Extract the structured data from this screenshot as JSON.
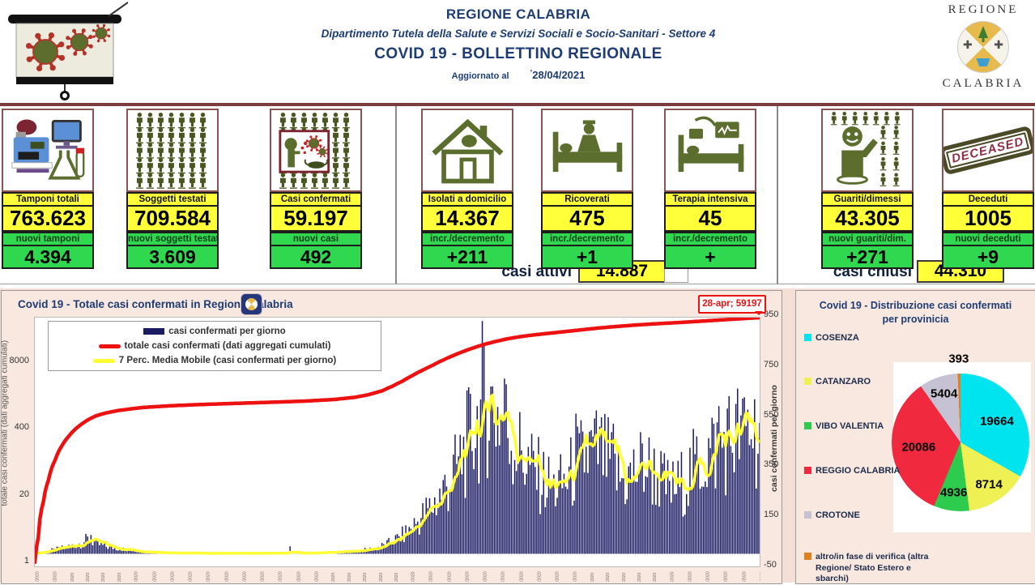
{
  "header": {
    "title1": "REGIONE CALABRIA",
    "subtitle": "Dipartimento Tutela della Salute e Servizi Sociali e Socio-Sanitari - Settore 4",
    "title2": "COVID 19 - BOLLETTINO REGIONALE",
    "updated_label": "Aggiornato al",
    "updated_tick": "’",
    "updated_date": "28/04/2021",
    "logo_top": "REGIONE",
    "logo_bottom": "CALABRIA"
  },
  "stats_cards": [
    {
      "id": "tamponi",
      "icon": "lab-equipment-icon",
      "title": "Tamponi totali",
      "value": "763.623",
      "sub_label": "nuovi tamponi",
      "sub_value": "4.394"
    },
    {
      "id": "soggetti",
      "icon": "people-grid-icon",
      "title": "Soggetti testati",
      "value": "709.584",
      "sub_label": "nuovi soggetti testati",
      "sub_value": "3.609"
    },
    {
      "id": "casi-confermati",
      "icon": "cough-virus-icon",
      "title": "Casi confermati",
      "value": "59.197",
      "sub_label": "nuovi casi",
      "sub_value": "492"
    },
    {
      "id": "isolati",
      "icon": "home-icon",
      "title": "Isolati a domicilio",
      "value": "14.367",
      "sub_label": "incr./decremento",
      "sub_value": "+211"
    },
    {
      "id": "ricoverati",
      "icon": "hospital-bed-icon",
      "title": "Ricoverati",
      "value": "475",
      "sub_label": "incr./decremento",
      "sub_value": "+1"
    },
    {
      "id": "terapia-intensiva",
      "icon": "icu-bed-icon",
      "title": "Terapia intensiva",
      "value": "45",
      "sub_label": "incr./decremento",
      "sub_value": "+"
    },
    {
      "id": "guariti",
      "icon": "recovered-person-icon",
      "title": "Guariti/dimessi",
      "value": "43.305",
      "sub_label": "nuovi guariti/dim.",
      "sub_value": "+271"
    },
    {
      "id": "deceduti",
      "icon": "deceased-stamp-icon",
      "stamp_text": "DECEASED",
      "title": "Deceduti",
      "value": "1005",
      "sub_label": "nuovi deceduti",
      "sub_value": "+9"
    }
  ],
  "summary": {
    "active_label": "casi attivi",
    "active_value": "14.887",
    "closed_label": "casi chiusi",
    "closed_value": "44.310"
  },
  "chart_data": [
    {
      "type": "bar",
      "title": "Covid 19 - Totale casi confermati in Regione Calabria",
      "legend": [
        "casi confermati per giorno",
        "totale casi confermati (dati aggregati cumulati)",
        "7 Perc. Media Mobile (casi confermati per giorno)"
      ],
      "annotation": "28-apr; 59197",
      "total_confirmed": 59197,
      "left_axis": {
        "scale": "log",
        "ticks": [
          8000,
          400,
          20,
          1
        ],
        "label": "totale casi confermati (dati aggregati cumulati)"
      },
      "right_axis": {
        "scale": "linear",
        "ticks": [
          950,
          750,
          550,
          350,
          150,
          -50
        ],
        "label": "casi confermati  per giorno"
      },
      "x_range": {
        "start": "27/2/2020",
        "end": "28/4/2021",
        "days": 427,
        "note": "daily rotated date labels, illegible at full scale"
      },
      "colors": {
        "bars": "#1b1b63",
        "cumulative": "#ee1111",
        "moving_avg": "#ffff33"
      },
      "daily_keypoints": [
        [
          0,
          2
        ],
        [
          3,
          6
        ],
        [
          8,
          12
        ],
        [
          14,
          20
        ],
        [
          20,
          28
        ],
        [
          26,
          40
        ],
        [
          31,
          55
        ],
        [
          34,
          48
        ],
        [
          38,
          35
        ],
        [
          44,
          26
        ],
        [
          50,
          20
        ],
        [
          58,
          13
        ],
        [
          64,
          9
        ],
        [
          72,
          6
        ],
        [
          80,
          4
        ],
        [
          90,
          3
        ],
        [
          100,
          2
        ],
        [
          112,
          2
        ],
        [
          124,
          2
        ],
        [
          136,
          2
        ],
        [
          148,
          2
        ],
        [
          160,
          3
        ],
        [
          172,
          5
        ],
        [
          184,
          9
        ],
        [
          192,
          14
        ],
        [
          200,
          22
        ],
        [
          206,
          35
        ],
        [
          212,
          55
        ],
        [
          217,
          75
        ],
        [
          222,
          105
        ],
        [
          227,
          140
        ],
        [
          232,
          175
        ],
        [
          237,
          215
        ],
        [
          242,
          265
        ],
        [
          247,
          320
        ],
        [
          251,
          380
        ],
        [
          255,
          440
        ],
        [
          259,
          500
        ],
        [
          263,
          560
        ],
        [
          267,
          590
        ],
        [
          271,
          560
        ],
        [
          275,
          530
        ],
        [
          279,
          470
        ],
        [
          283,
          420
        ],
        [
          287,
          380
        ],
        [
          291,
          340
        ],
        [
          295,
          310
        ],
        [
          300,
          280
        ],
        [
          305,
          255
        ],
        [
          310,
          270
        ],
        [
          314,
          300
        ],
        [
          318,
          340
        ],
        [
          322,
          370
        ],
        [
          326,
          390
        ],
        [
          330,
          400
        ],
        [
          334,
          380
        ],
        [
          338,
          350
        ],
        [
          342,
          310
        ],
        [
          346,
          280
        ],
        [
          350,
          300
        ],
        [
          354,
          330
        ],
        [
          358,
          350
        ],
        [
          362,
          330
        ],
        [
          366,
          300
        ],
        [
          370,
          270
        ],
        [
          374,
          250
        ],
        [
          378,
          260
        ],
        [
          382,
          290
        ],
        [
          386,
          320
        ],
        [
          390,
          350
        ],
        [
          394,
          380
        ],
        [
          398,
          400
        ],
        [
          402,
          420
        ],
        [
          406,
          440
        ],
        [
          410,
          455
        ],
        [
          414,
          470
        ],
        [
          418,
          485
        ],
        [
          421,
          500
        ],
        [
          424,
          480
        ],
        [
          426,
          460
        ]
      ],
      "spikes": [
        [
          33,
          75
        ],
        [
          150,
          30
        ],
        [
          263,
          930
        ],
        [
          276,
          700
        ],
        [
          318,
          560
        ],
        [
          340,
          520
        ],
        [
          402,
          590
        ],
        [
          416,
          620
        ]
      ],
      "cumulative_keypoints": [
        [
          0,
          1
        ],
        [
          2,
          3
        ],
        [
          5,
          15
        ],
        [
          8,
          40
        ],
        [
          12,
          100
        ],
        [
          16,
          190
        ],
        [
          20,
          290
        ],
        [
          24,
          400
        ],
        [
          28,
          510
        ],
        [
          32,
          620
        ],
        [
          36,
          720
        ],
        [
          42,
          820
        ],
        [
          48,
          900
        ],
        [
          56,
          980
        ],
        [
          64,
          1050
        ],
        [
          80,
          1130
        ],
        [
          96,
          1190
        ],
        [
          112,
          1240
        ],
        [
          128,
          1290
        ],
        [
          144,
          1340
        ],
        [
          160,
          1400
        ],
        [
          176,
          1500
        ],
        [
          188,
          1650
        ],
        [
          196,
          1850
        ],
        [
          204,
          2200
        ],
        [
          210,
          2700
        ],
        [
          216,
          3400
        ],
        [
          222,
          4400
        ],
        [
          228,
          5600
        ],
        [
          234,
          7000
        ],
        [
          240,
          8800
        ],
        [
          246,
          10800
        ],
        [
          252,
          13000
        ],
        [
          258,
          15300
        ],
        [
          264,
          17700
        ],
        [
          270,
          20000
        ],
        [
          276,
          22200
        ],
        [
          282,
          24200
        ],
        [
          288,
          25900
        ],
        [
          294,
          27400
        ],
        [
          300,
          28800
        ],
        [
          306,
          30200
        ],
        [
          312,
          31700
        ],
        [
          318,
          33300
        ],
        [
          324,
          35000
        ],
        [
          330,
          36700
        ],
        [
          336,
          38300
        ],
        [
          342,
          39800
        ],
        [
          348,
          41200
        ],
        [
          354,
          42600
        ],
        [
          360,
          43900
        ],
        [
          366,
          45100
        ],
        [
          372,
          46200
        ],
        [
          378,
          47400
        ],
        [
          384,
          48700
        ],
        [
          390,
          50100
        ],
        [
          396,
          51500
        ],
        [
          402,
          53000
        ],
        [
          408,
          54500
        ],
        [
          414,
          56000
        ],
        [
          420,
          57600
        ],
        [
          426,
          59197
        ]
      ]
    },
    {
      "type": "pie",
      "title": "Covid 19 - Distribuzione casi confermati per provinicia",
      "total": 59197,
      "slices": [
        {
          "label": "COSENZA",
          "value": 19664,
          "color": "#00e4ef"
        },
        {
          "label": "CATANZARO",
          "value": 8714,
          "color": "#eff053"
        },
        {
          "label": "VIBO VALENTIA",
          "value": 4936,
          "color": "#2ecc4e"
        },
        {
          "label": "REGGIO CALABRIA",
          "value": 20086,
          "color": "#f0293f"
        },
        {
          "label": "CROTONE",
          "value": 5404,
          "color": "#c7c2d3"
        },
        {
          "label": "altro/in fase di verifica (altra Regione/ Stato Estero e sbarchi)",
          "value": 393,
          "color": "#e08020"
        }
      ]
    }
  ]
}
